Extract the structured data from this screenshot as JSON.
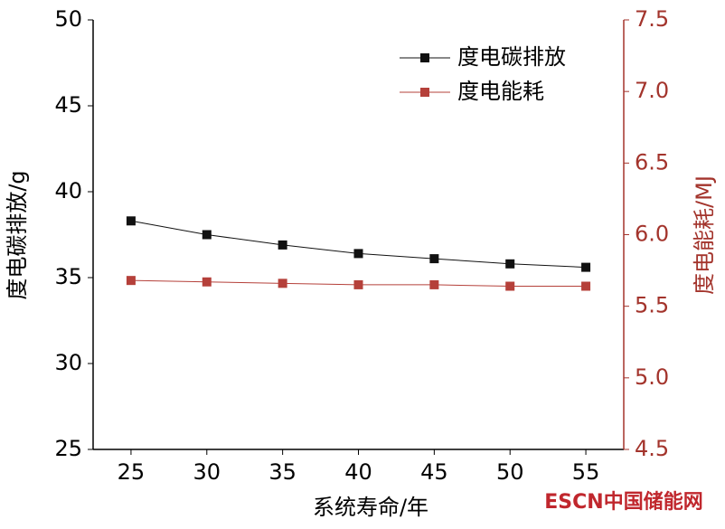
{
  "chart_data": {
    "type": "line",
    "x": [
      25,
      30,
      35,
      40,
      45,
      50,
      55
    ],
    "xlim": [
      22.5,
      57.5
    ],
    "xticks": [
      25,
      30,
      35,
      40,
      45,
      50,
      55
    ],
    "ylim": [
      25,
      50
    ],
    "yticks": [
      25,
      30,
      35,
      40,
      45,
      50
    ],
    "y2lim": [
      4.5,
      7.5
    ],
    "y2ticks": [
      4.5,
      5.0,
      5.5,
      6.0,
      6.5,
      7.0,
      7.5
    ],
    "xlabel": "系统寿命/年",
    "ylabel": "度电碳排放/g",
    "y2label": "度电能耗/MJ",
    "y2color": "#a3342c",
    "legend": "upper right",
    "series": [
      {
        "name": "度电碳排放",
        "color": "#111111",
        "values": [
          38.3,
          37.5,
          36.9,
          36.4,
          36.1,
          35.8,
          35.6
        ]
      },
      {
        "name": "度电能耗",
        "color": "#b5403a",
        "axis": "y2",
        "values": [
          5.68,
          5.67,
          5.66,
          5.65,
          5.65,
          5.64,
          5.64
        ]
      }
    ],
    "watermark": "ESCN中国储能网"
  }
}
